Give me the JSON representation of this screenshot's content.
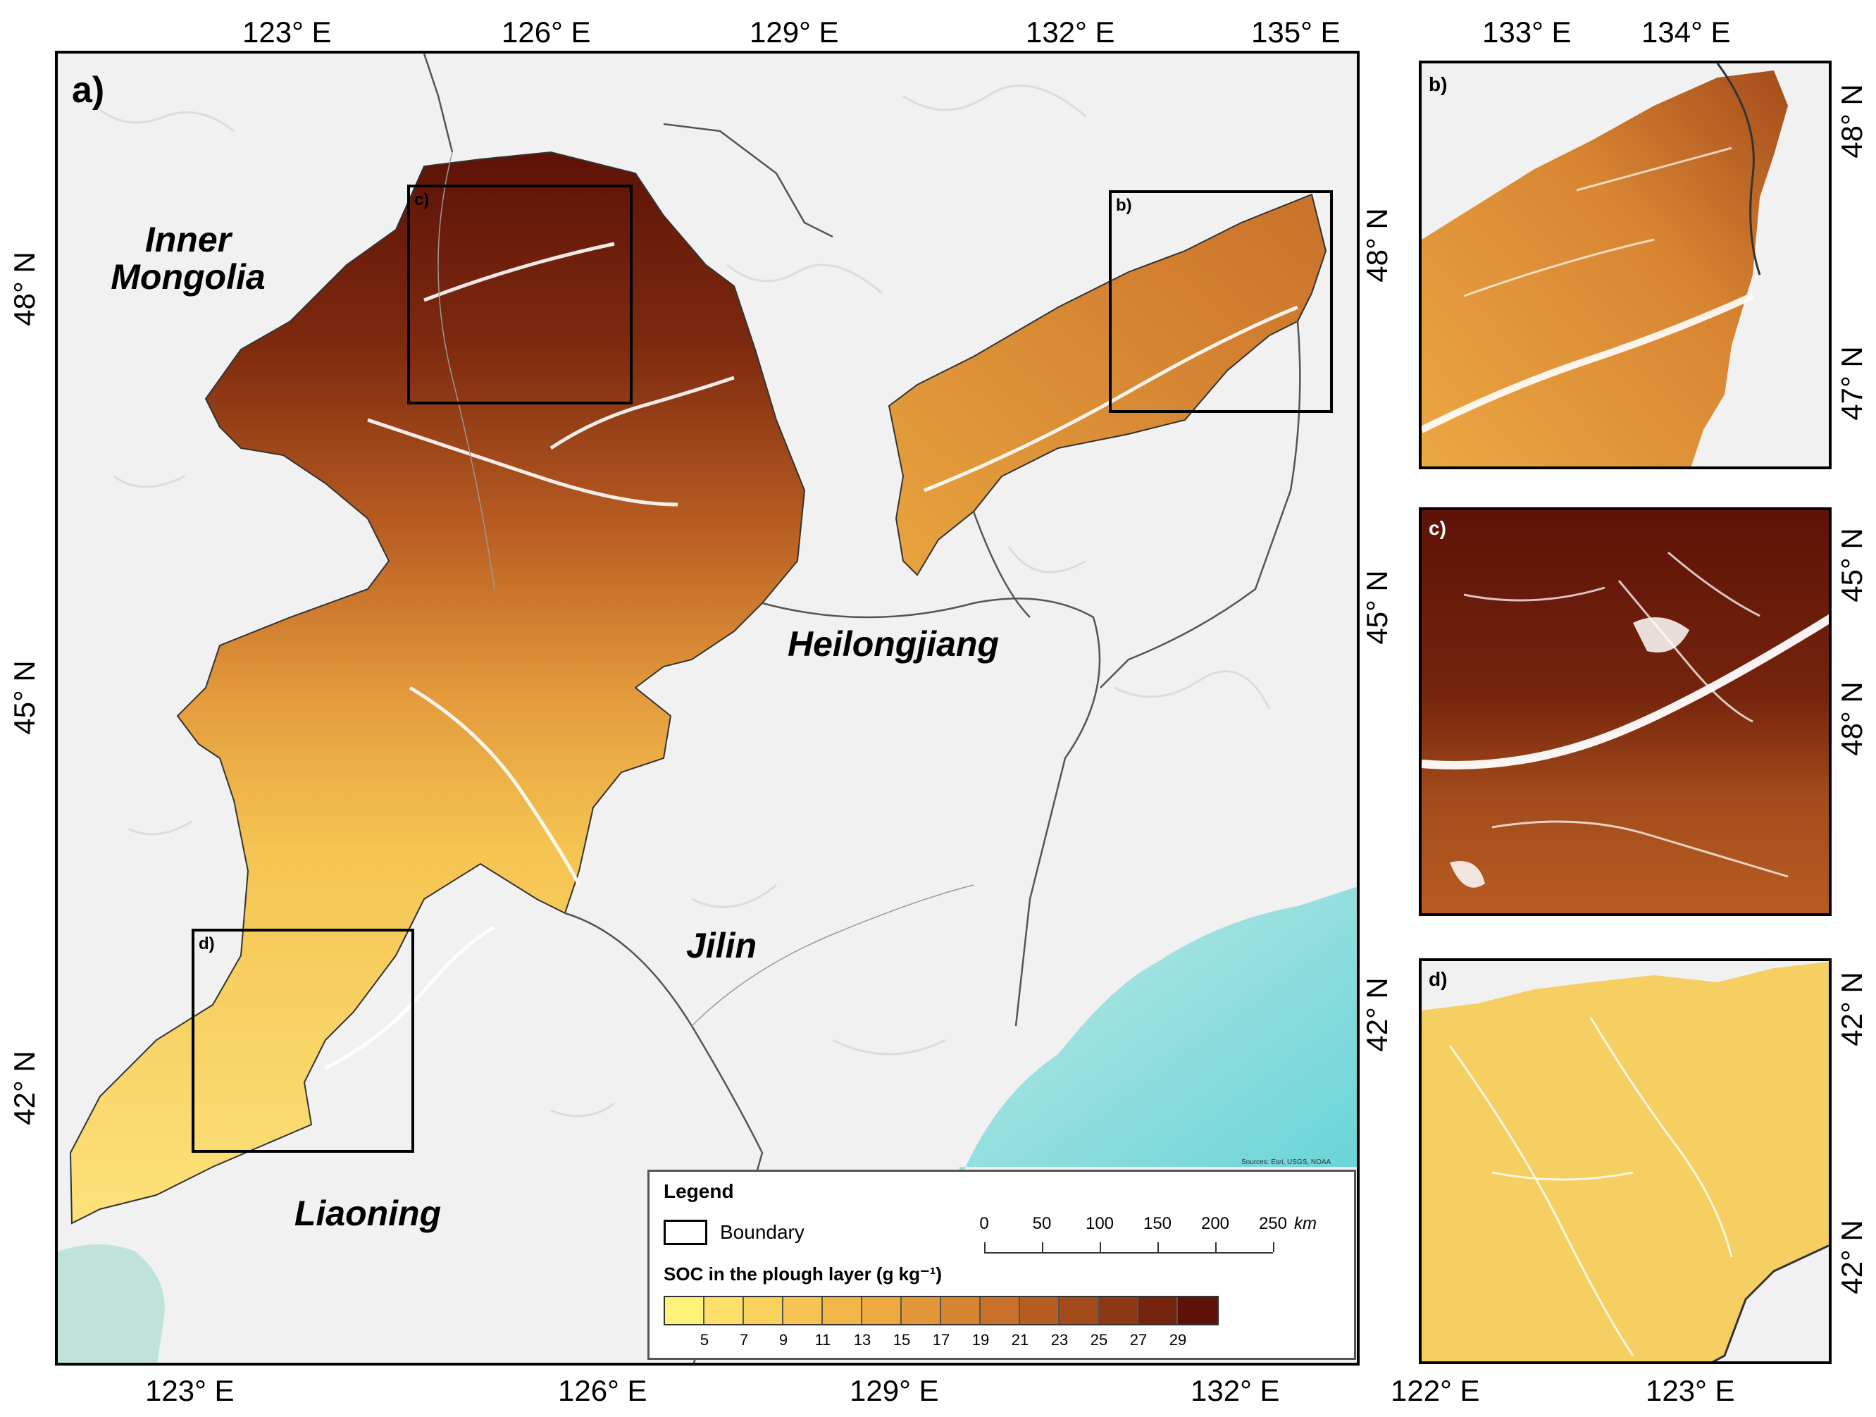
{
  "main_map": {
    "panel_letter": "a)",
    "top_ticks": [
      "123° E",
      "126° E",
      "129° E",
      "132° E",
      "135° E"
    ],
    "bottom_ticks": [
      "123° E",
      "126° E",
      "129° E",
      "132° E"
    ],
    "left_ticks": [
      "48° N",
      "45° N",
      "42° N"
    ],
    "right_ticks": [
      "48° N",
      "45° N",
      "42° N"
    ],
    "regions": {
      "inner_mongolia": "Inner\nMongolia",
      "heilongjiang": "Heilongjiang",
      "jilin": "Jilin",
      "liaoning": "Liaoning"
    },
    "inset_labels": {
      "b": "b)",
      "c": "c)",
      "d": "d)"
    },
    "credit": "Sources: Esri, USGS, NOAA"
  },
  "legend": {
    "title": "Legend",
    "boundary_label": "Boundary",
    "soc_title": "SOC in the plough layer (g kg⁻¹)",
    "ramp_colors": [
      "#fff27a",
      "#fde06a",
      "#f9d25e",
      "#f5c452",
      "#f1b548",
      "#ecaa41",
      "#e2983a",
      "#d88532",
      "#c9712a",
      "#b85d22",
      "#a34b1b",
      "#8d3814",
      "#75240d",
      "#5e1207"
    ],
    "ramp_labels": [
      "5",
      "7",
      "9",
      "11",
      "13",
      "15",
      "17",
      "19",
      "21",
      "23",
      "25",
      "27",
      "29"
    ],
    "scale_values": [
      "0",
      "50",
      "100",
      "150",
      "200",
      "250"
    ],
    "scale_unit": "km"
  },
  "inset_b": {
    "panel_letter": "b)",
    "top_ticks": [
      "133° E",
      "134° E"
    ],
    "right_ticks": [
      "48° N",
      "47° N"
    ]
  },
  "inset_c": {
    "panel_letter": "c)",
    "right_ticks": [
      "45° N",
      "48° N"
    ]
  },
  "inset_d": {
    "panel_letter": "d)",
    "right_ticks": [
      "42° N",
      "42° N"
    ],
    "bottom_ticks": [
      "122° E",
      "123° E"
    ]
  }
}
